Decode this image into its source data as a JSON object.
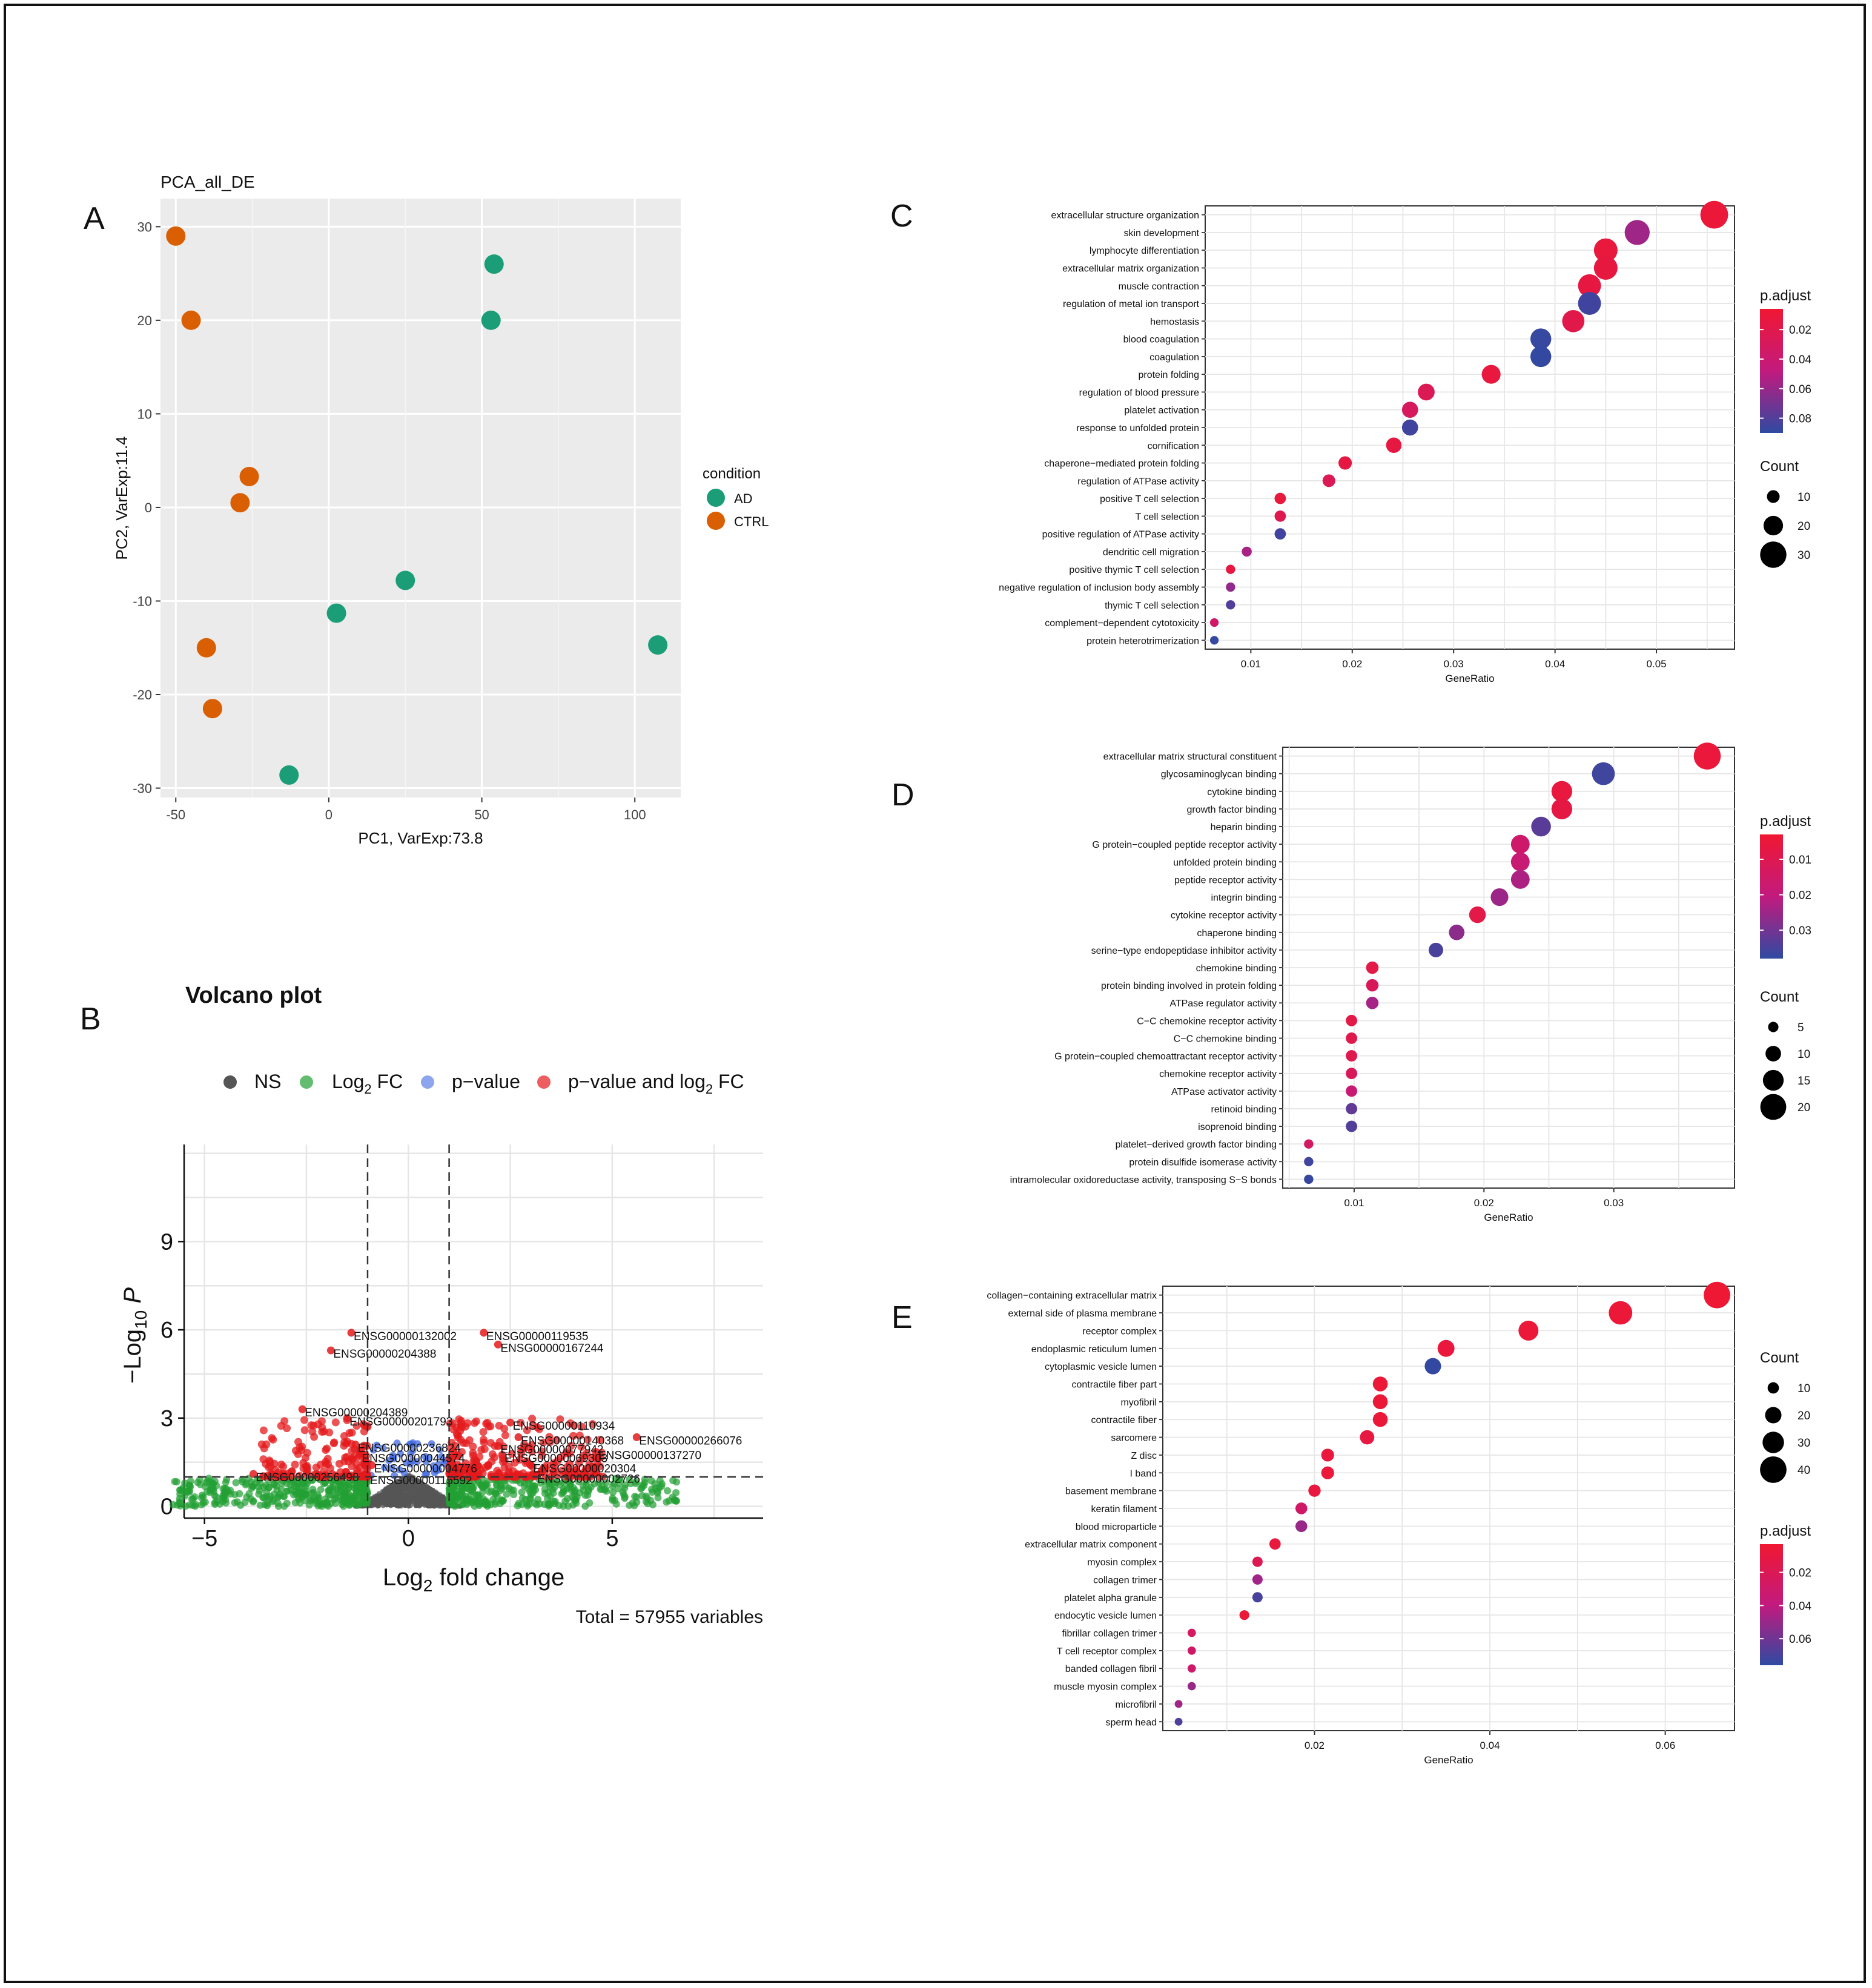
{
  "panel_letters": [
    "A",
    "B",
    "C",
    "D",
    "E"
  ],
  "chart_data": [
    {
      "id": "A",
      "type": "scatter",
      "title": "PCA_all_DE",
      "xlabel": "PC1, VarExp:73.8",
      "ylabel": "PC2, VarExp:11.4",
      "xlim": [
        -55,
        115
      ],
      "ylim": [
        -31,
        33
      ],
      "xticks": [
        -50,
        0,
        50,
        100
      ],
      "yticks": [
        -30,
        -20,
        -10,
        0,
        10,
        20,
        30
      ],
      "legend": {
        "title": "condition",
        "entries": [
          {
            "label": "AD",
            "color": "#1b9e77"
          },
          {
            "label": "CTRL",
            "color": "#d95f02"
          }
        ]
      },
      "series": [
        {
          "name": "AD",
          "color": "#1b9e77",
          "points": [
            [
              54,
              26
            ],
            [
              53,
              20
            ],
            [
              25,
              -7.8
            ],
            [
              2.5,
              -11.3
            ],
            [
              107.5,
              -14.7
            ],
            [
              -13,
              -28.6
            ]
          ]
        },
        {
          "name": "CTRL",
          "color": "#d95f02",
          "points": [
            [
              -50,
              29
            ],
            [
              -45,
              20
            ],
            [
              -26,
              3.3
            ],
            [
              -29,
              0.5
            ],
            [
              -40,
              -15
            ],
            [
              -38,
              -21.5
            ]
          ]
        }
      ]
    },
    {
      "id": "B",
      "type": "scatter",
      "title": "Volcano plot",
      "xlabel": "Log2 fold change",
      "xlabel_base": "Log",
      "xlabel_sub": "2",
      "xlabel_rest": " fold change",
      "ylabel_base": "−Log",
      "ylabel_sub": "10",
      "ylabel_italic": "P",
      "xlim": [
        -5.5,
        8.7
      ],
      "ylim": [
        -0.4,
        12.3
      ],
      "xticks": [
        -5,
        0,
        5
      ],
      "yticks": [
        0,
        3,
        6,
        9
      ],
      "fc_cutoffs": [
        -1,
        1
      ],
      "p_cutoff": 1,
      "footer": "Total = 57955 variables",
      "legend": [
        {
          "label": "NS",
          "color": "#555555"
        },
        {
          "label_base": "Log",
          "label_sub": "2",
          "label_rest": " FC",
          "color": "#22a033"
        },
        {
          "label": "p−value",
          "color": "#4169e1"
        },
        {
          "label": "p−value and log",
          "label_sub": "2",
          "label_rest": " FC",
          "color": "#e41a1c"
        }
      ],
      "labeled_points": [
        {
          "gene": "ENSG00000132002",
          "x": -1.4,
          "y": 5.9
        },
        {
          "gene": "ENSG00000204388",
          "x": -1.9,
          "y": 5.3
        },
        {
          "gene": "ENSG00000119535",
          "x": 1.85,
          "y": 5.9
        },
        {
          "gene": "ENSG00000167244",
          "x": 2.2,
          "y": 5.5
        },
        {
          "gene": "ENSG00000204389",
          "x": -2.6,
          "y": 3.3
        },
        {
          "gene": "ENSG00000201793",
          "x": -1.5,
          "y": 3.0
        },
        {
          "gene": "ENSG00000110934",
          "x": 2.5,
          "y": 2.85
        },
        {
          "gene": "ENSG00000140368",
          "x": 2.7,
          "y": 2.35
        },
        {
          "gene": "ENSG00000266076",
          "x": 5.6,
          "y": 2.35
        },
        {
          "gene": "ENSG00000236824",
          "x": -1.3,
          "y": 2.1
        },
        {
          "gene": "ENSG00000077942",
          "x": 2.2,
          "y": 2.05
        },
        {
          "gene": "ENSG00000137270",
          "x": 4.6,
          "y": 1.85
        },
        {
          "gene": "ENSG00000044574",
          "x": -1.2,
          "y": 1.75
        },
        {
          "gene": "ENSG00000069303",
          "x": 2.3,
          "y": 1.75
        },
        {
          "gene": "ENSG00000004776",
          "x": -0.9,
          "y": 1.4
        },
        {
          "gene": "ENSG00000020304",
          "x": 3.0,
          "y": 1.4
        },
        {
          "gene": "ENSG00000256498",
          "x": -3.8,
          "y": 1.1
        },
        {
          "gene": "ENSG00000115592",
          "x": -1.0,
          "y": 1.0
        },
        {
          "gene": "ENSG00000002726",
          "x": 3.1,
          "y": 1.05
        }
      ]
    },
    {
      "id": "C",
      "type": "scatter",
      "subtype": "dotplot",
      "xlabel": "GeneRatio",
      "xlim": [
        0.0055,
        0.0577
      ],
      "xticks": [
        0.01,
        0.02,
        0.03,
        0.04,
        0.05
      ],
      "xtick_labels": [
        "0.01",
        "0.02",
        "0.03",
        "0.04",
        "0.05"
      ],
      "color_legend": {
        "title": "p.adjust",
        "min": 0.006,
        "max": 0.09,
        "ticks": [
          0.02,
          0.04,
          0.06,
          0.08
        ],
        "tick_labels": [
          "0.02",
          "0.04",
          "0.06",
          "0.08"
        ]
      },
      "size_legend": {
        "title": "Count",
        "min": 2,
        "max": 34,
        "values": [
          10,
          20,
          30
        ],
        "labels": [
          "10",
          "20",
          "30"
        ]
      },
      "terms": [
        {
          "term": "extracellular structure organization",
          "ratio": 0.0557,
          "p": 0.01,
          "count": 32
        },
        {
          "term": "skin development",
          "ratio": 0.0481,
          "p": 0.058,
          "count": 28
        },
        {
          "term": "lymphocyte differentiation",
          "ratio": 0.045,
          "p": 0.012,
          "count": 26
        },
        {
          "term": "extracellular matrix organization",
          "ratio": 0.045,
          "p": 0.014,
          "count": 26
        },
        {
          "term": "muscle contraction",
          "ratio": 0.0434,
          "p": 0.015,
          "count": 25
        },
        {
          "term": "regulation of metal ion transport",
          "ratio": 0.0434,
          "p": 0.085,
          "count": 25
        },
        {
          "term": "hemostasis",
          "ratio": 0.0418,
          "p": 0.02,
          "count": 24
        },
        {
          "term": "blood coagulation",
          "ratio": 0.0386,
          "p": 0.088,
          "count": 22
        },
        {
          "term": "coagulation",
          "ratio": 0.0386,
          "p": 0.089,
          "count": 22
        },
        {
          "term": "protein folding",
          "ratio": 0.0337,
          "p": 0.013,
          "count": 19
        },
        {
          "term": "regulation of blood pressure",
          "ratio": 0.0273,
          "p": 0.025,
          "count": 16
        },
        {
          "term": "platelet activation",
          "ratio": 0.0257,
          "p": 0.03,
          "count": 15
        },
        {
          "term": "response to unfolded protein",
          "ratio": 0.0257,
          "p": 0.085,
          "count": 15
        },
        {
          "term": "cornification",
          "ratio": 0.0241,
          "p": 0.015,
          "count": 14
        },
        {
          "term": "chaperone−mediated protein folding",
          "ratio": 0.0193,
          "p": 0.016,
          "count": 11
        },
        {
          "term": "regulation of ATPase activity",
          "ratio": 0.0177,
          "p": 0.025,
          "count": 10
        },
        {
          "term": "positive T cell selection",
          "ratio": 0.0129,
          "p": 0.012,
          "count": 8
        },
        {
          "term": "T cell selection",
          "ratio": 0.0129,
          "p": 0.022,
          "count": 8
        },
        {
          "term": "positive regulation of ATPase activity",
          "ratio": 0.0129,
          "p": 0.085,
          "count": 8
        },
        {
          "term": "dendritic cell migration",
          "ratio": 0.0096,
          "p": 0.055,
          "count": 6
        },
        {
          "term": "positive thymic T cell selection",
          "ratio": 0.008,
          "p": 0.015,
          "count": 5
        },
        {
          "term": "negative regulation of inclusion body assembly",
          "ratio": 0.008,
          "p": 0.062,
          "count": 5
        },
        {
          "term": "thymic T cell selection",
          "ratio": 0.008,
          "p": 0.08,
          "count": 5
        },
        {
          "term": "complement−dependent cytotoxicity",
          "ratio": 0.0064,
          "p": 0.035,
          "count": 4
        },
        {
          "term": "protein heterotrimerization",
          "ratio": 0.0064,
          "p": 0.088,
          "count": 4
        }
      ]
    },
    {
      "id": "D",
      "type": "scatter",
      "subtype": "dotplot",
      "xlabel": "GeneRatio",
      "xlim": [
        0.0045,
        0.0393
      ],
      "xticks": [
        0.01,
        0.02,
        0.03
      ],
      "xtick_labels": [
        "0.01",
        "0.02",
        "0.03"
      ],
      "color_legend": {
        "title": "p.adjust",
        "min": 0.003,
        "max": 0.038,
        "ticks": [
          0.01,
          0.02,
          0.03
        ],
        "tick_labels": [
          "0.01",
          "0.02",
          "0.03"
        ]
      },
      "size_legend": {
        "title": "Count",
        "min": 2,
        "max": 23,
        "values": [
          5,
          10,
          15,
          20
        ],
        "labels": [
          "5",
          "10",
          "15",
          "20"
        ]
      },
      "terms": [
        {
          "term": "extracellular matrix structural constituent",
          "ratio": 0.0372,
          "p": 0.005,
          "count": 21
        },
        {
          "term": "glycosaminoglycan binding",
          "ratio": 0.0292,
          "p": 0.036,
          "count": 17
        },
        {
          "term": "cytokine binding",
          "ratio": 0.026,
          "p": 0.006,
          "count": 15
        },
        {
          "term": "growth factor binding",
          "ratio": 0.026,
          "p": 0.007,
          "count": 15
        },
        {
          "term": "heparin binding",
          "ratio": 0.0244,
          "p": 0.033,
          "count": 14
        },
        {
          "term": "G protein−coupled peptide receptor activity",
          "ratio": 0.0228,
          "p": 0.016,
          "count": 13
        },
        {
          "term": "unfolded protein binding",
          "ratio": 0.0228,
          "p": 0.018,
          "count": 13
        },
        {
          "term": "peptide receptor activity",
          "ratio": 0.0228,
          "p": 0.023,
          "count": 13
        },
        {
          "term": "integrin binding",
          "ratio": 0.0212,
          "p": 0.025,
          "count": 12
        },
        {
          "term": "cytokine receptor activity",
          "ratio": 0.0195,
          "p": 0.008,
          "count": 11
        },
        {
          "term": "chaperone binding",
          "ratio": 0.0179,
          "p": 0.027,
          "count": 10
        },
        {
          "term": "serine−type endopeptidase inhibitor activity",
          "ratio": 0.0163,
          "p": 0.035,
          "count": 9
        },
        {
          "term": "chemokine binding",
          "ratio": 0.0114,
          "p": 0.008,
          "count": 7
        },
        {
          "term": "protein binding involved in protein folding",
          "ratio": 0.0114,
          "p": 0.012,
          "count": 7
        },
        {
          "term": "ATPase regulator activity",
          "ratio": 0.0114,
          "p": 0.024,
          "count": 7
        },
        {
          "term": "C−C chemokine receptor activity",
          "ratio": 0.0098,
          "p": 0.008,
          "count": 6
        },
        {
          "term": "C−C chemokine binding",
          "ratio": 0.0098,
          "p": 0.009,
          "count": 6
        },
        {
          "term": "G protein−coupled chemoattractant receptor activity",
          "ratio": 0.0098,
          "p": 0.01,
          "count": 6
        },
        {
          "term": "chemokine receptor activity",
          "ratio": 0.0098,
          "p": 0.012,
          "count": 6
        },
        {
          "term": "ATPase activator activity",
          "ratio": 0.0098,
          "p": 0.018,
          "count": 6
        },
        {
          "term": "retinoid binding",
          "ratio": 0.0098,
          "p": 0.032,
          "count": 6
        },
        {
          "term": "isoprenoid binding",
          "ratio": 0.0098,
          "p": 0.034,
          "count": 6
        },
        {
          "term": "platelet−derived growth factor binding",
          "ratio": 0.0065,
          "p": 0.014,
          "count": 4
        },
        {
          "term": "protein disulfide isomerase activity",
          "ratio": 0.0065,
          "p": 0.036,
          "count": 4
        },
        {
          "term": "intramolecular oxidoreductase activity, transposing S−S bonds",
          "ratio": 0.0065,
          "p": 0.037,
          "count": 4
        }
      ]
    },
    {
      "id": "E",
      "type": "scatter",
      "subtype": "dotplot",
      "xlabel": "GeneRatio",
      "xlim": [
        0.0027,
        0.0679
      ],
      "xticks": [
        0.02,
        0.04,
        0.06
      ],
      "xtick_labels": [
        "0.02",
        "0.04",
        "0.06"
      ],
      "color_legend": {
        "title": "p.adjust",
        "min": 0.003,
        "max": 0.076,
        "ticks": [
          0.02,
          0.04,
          0.06
        ],
        "tick_labels": [
          "0.02",
          "0.04",
          "0.06"
        ]
      },
      "size_legend": {
        "title": "Count",
        "min": 2,
        "max": 45,
        "values": [
          10,
          20,
          30,
          40
        ],
        "labels": [
          "10",
          "20",
          "30",
          "40"
        ]
      },
      "terms": [
        {
          "term": "collagen−containing extracellular matrix",
          "ratio": 0.0659,
          "p": 0.004,
          "count": 40
        },
        {
          "term": "external side of plasma membrane",
          "ratio": 0.0549,
          "p": 0.006,
          "count": 34
        },
        {
          "term": "receptor complex",
          "ratio": 0.0444,
          "p": 0.007,
          "count": 27
        },
        {
          "term": "endoplasmic reticulum lumen",
          "ratio": 0.035,
          "p": 0.008,
          "count": 21
        },
        {
          "term": "cytoplasmic vesicle lumen",
          "ratio": 0.0335,
          "p": 0.075,
          "count": 20
        },
        {
          "term": "contractile fiber part",
          "ratio": 0.0275,
          "p": 0.006,
          "count": 17
        },
        {
          "term": "myofibril",
          "ratio": 0.0275,
          "p": 0.006,
          "count": 17
        },
        {
          "term": "contractile fiber",
          "ratio": 0.0275,
          "p": 0.007,
          "count": 17
        },
        {
          "term": "sarcomere",
          "ratio": 0.026,
          "p": 0.01,
          "count": 16
        },
        {
          "term": "Z disc",
          "ratio": 0.0215,
          "p": 0.008,
          "count": 13
        },
        {
          "term": "I band",
          "ratio": 0.0215,
          "p": 0.007,
          "count": 13
        },
        {
          "term": "basement membrane",
          "ratio": 0.02,
          "p": 0.009,
          "count": 12
        },
        {
          "term": "keratin filament",
          "ratio": 0.0185,
          "p": 0.028,
          "count": 11
        },
        {
          "term": "blood microparticle",
          "ratio": 0.0185,
          "p": 0.05,
          "count": 11
        },
        {
          "term": "extracellular matrix component",
          "ratio": 0.0155,
          "p": 0.008,
          "count": 10
        },
        {
          "term": "myosin complex",
          "ratio": 0.0135,
          "p": 0.018,
          "count": 8
        },
        {
          "term": "collagen trimer",
          "ratio": 0.0135,
          "p": 0.048,
          "count": 8
        },
        {
          "term": "platelet alpha granule",
          "ratio": 0.0135,
          "p": 0.07,
          "count": 8
        },
        {
          "term": "endocytic vesicle lumen",
          "ratio": 0.012,
          "p": 0.006,
          "count": 7
        },
        {
          "term": "fibrillar collagen trimer",
          "ratio": 0.006,
          "p": 0.025,
          "count": 4
        },
        {
          "term": "T cell receptor complex",
          "ratio": 0.006,
          "p": 0.028,
          "count": 4
        },
        {
          "term": "banded collagen fibril",
          "ratio": 0.006,
          "p": 0.03,
          "count": 4
        },
        {
          "term": "muscle myosin complex",
          "ratio": 0.006,
          "p": 0.05,
          "count": 4
        },
        {
          "term": "microfibril",
          "ratio": 0.0045,
          "p": 0.048,
          "count": 3
        },
        {
          "term": "sperm head",
          "ratio": 0.0045,
          "p": 0.068,
          "count": 3
        }
      ]
    }
  ]
}
